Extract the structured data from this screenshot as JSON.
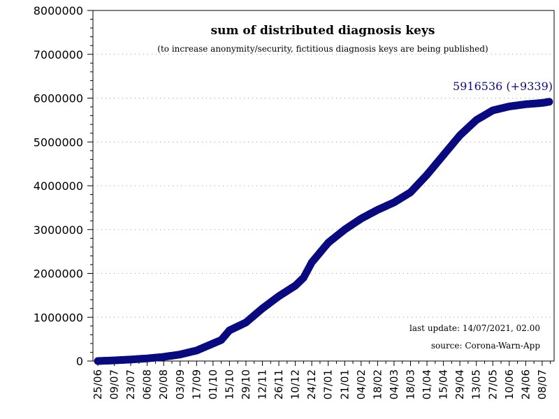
{
  "chart_data": {
    "type": "scatter",
    "title": "sum of distributed diagnosis keys",
    "subtitle": "(to increase anonymity/security, fictitious diagnosis keys are being published)",
    "xlabel": "",
    "ylabel": "",
    "ylim": [
      0,
      8000000
    ],
    "y_ticks": [
      "0",
      "1000000",
      "2000000",
      "3000000",
      "4000000",
      "5000000",
      "6000000",
      "7000000",
      "8000000"
    ],
    "x_ticks": [
      "25/06",
      "09/07",
      "23/07",
      "06/08",
      "20/08",
      "03/09",
      "17/09",
      "01/10",
      "15/10",
      "29/10",
      "12/11",
      "26/11",
      "10/12",
      "24/12",
      "07/01",
      "21/01",
      "04/02",
      "18/02",
      "04/03",
      "18/03",
      "01/04",
      "15/04",
      "29/04",
      "13/05",
      "27/05",
      "10/06",
      "24/06",
      "08/07"
    ],
    "x_start_date": "2020-06-25",
    "x_end_date": "2021-07-14",
    "grid": true,
    "marker_color": "#0a0a80",
    "annotation": "5916536 (+9339)",
    "footer_update": "last update: 14/07/2021, 02.00",
    "footer_source": "source: Corona-Warn-App",
    "series": [
      {
        "points": [
          [
            "2020-06-25",
            0
          ],
          [
            "2020-07-09",
            15000
          ],
          [
            "2020-07-23",
            35000
          ],
          [
            "2020-08-06",
            60000
          ],
          [
            "2020-08-20",
            95000
          ],
          [
            "2020-09-03",
            150000
          ],
          [
            "2020-09-17",
            240000
          ],
          [
            "2020-10-01",
            400000
          ],
          [
            "2020-10-08",
            480000
          ],
          [
            "2020-10-15",
            700000
          ],
          [
            "2020-10-29",
            880000
          ],
          [
            "2020-11-12",
            1200000
          ],
          [
            "2020-11-26",
            1480000
          ],
          [
            "2020-12-10",
            1720000
          ],
          [
            "2020-12-17",
            1900000
          ],
          [
            "2020-12-24",
            2250000
          ],
          [
            "2021-01-07",
            2700000
          ],
          [
            "2021-01-21",
            3000000
          ],
          [
            "2021-02-04",
            3250000
          ],
          [
            "2021-02-18",
            3450000
          ],
          [
            "2021-03-04",
            3620000
          ],
          [
            "2021-03-18",
            3850000
          ],
          [
            "2021-04-01",
            4250000
          ],
          [
            "2021-04-15",
            4700000
          ],
          [
            "2021-04-29",
            5150000
          ],
          [
            "2021-05-13",
            5500000
          ],
          [
            "2021-05-27",
            5720000
          ],
          [
            "2021-06-10",
            5810000
          ],
          [
            "2021-06-24",
            5860000
          ],
          [
            "2021-07-08",
            5890000
          ],
          [
            "2021-07-14",
            5916536
          ]
        ]
      }
    ]
  }
}
